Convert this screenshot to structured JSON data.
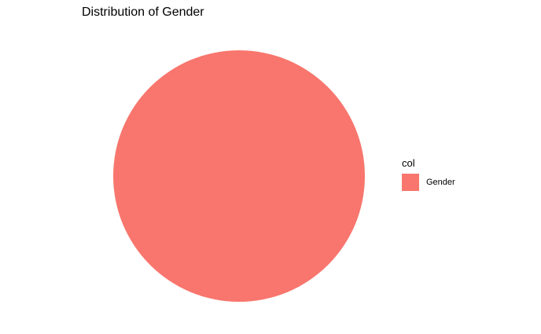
{
  "chart_data": {
    "type": "pie",
    "title": "Distribution of Gender",
    "slices": [
      {
        "label": "Gender",
        "value": 1,
        "color": "#F8766D"
      }
    ],
    "legend": {
      "title": "col",
      "placement": "right"
    },
    "grid": false
  }
}
